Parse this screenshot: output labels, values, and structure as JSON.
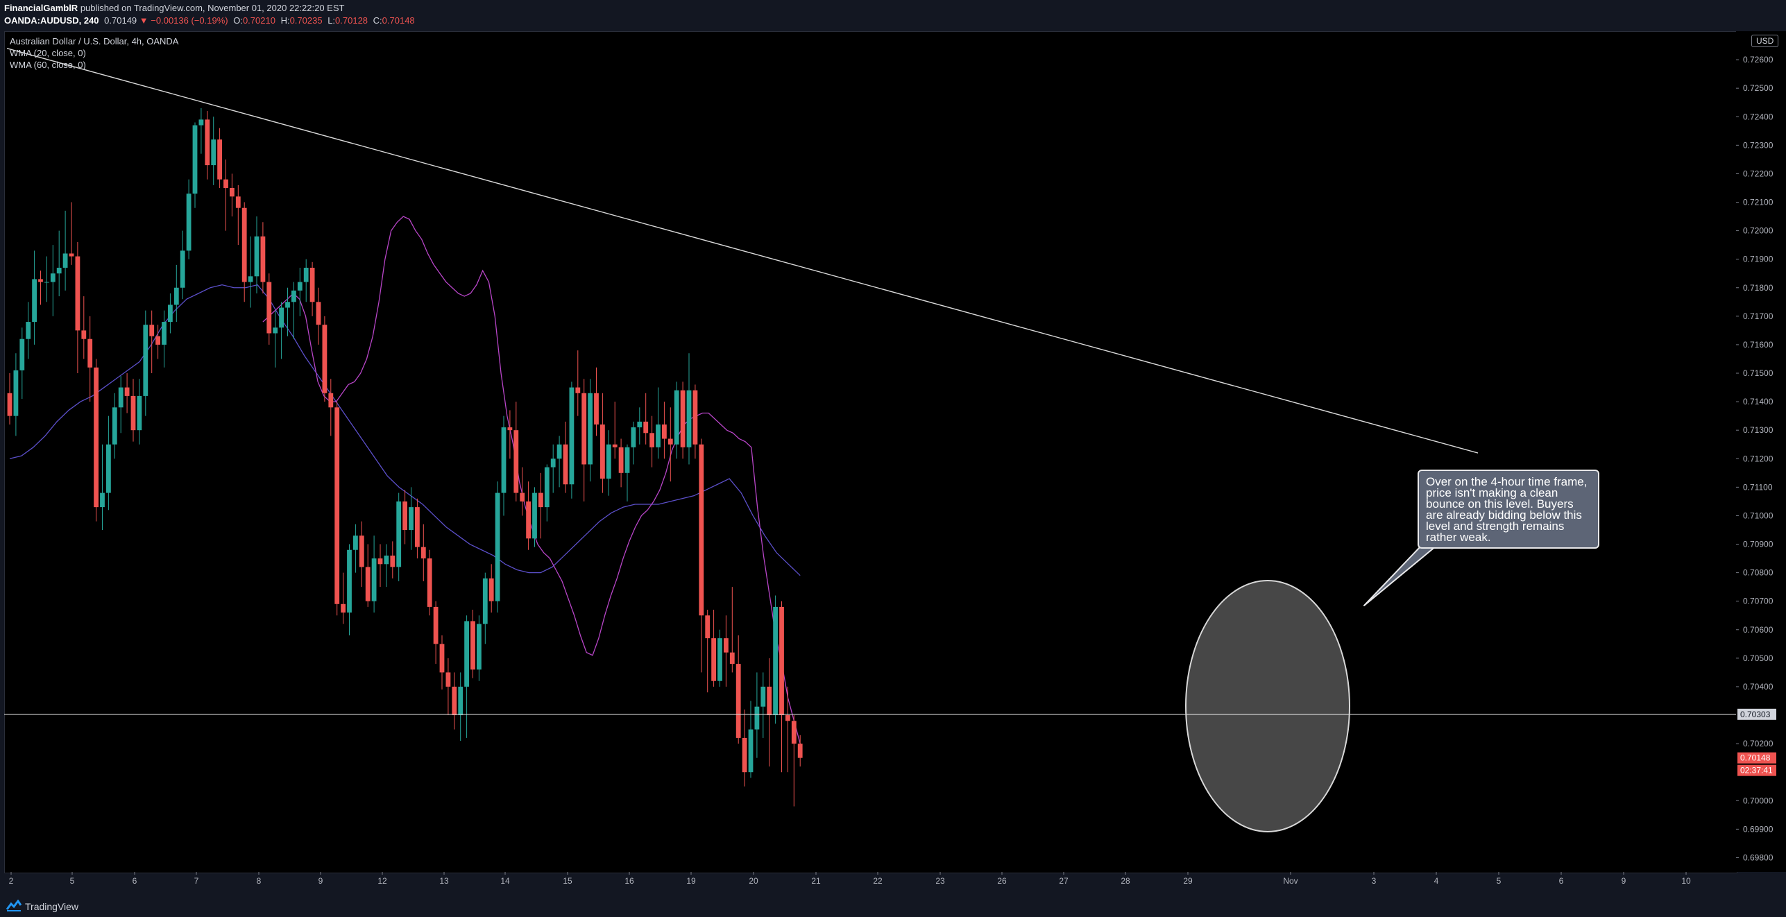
{
  "header": {
    "author": "FinancialGamblR",
    "published_text": "published on TradingView.com, November 01, 2020 22:22:20 EST",
    "symbol": "OANDA:AUDUSD, 240",
    "last": "0.70149",
    "change": "−0.00136 (−0.19%)",
    "open_label": "O:",
    "open": "0.70210",
    "high_label": "H:",
    "high": "0.70235",
    "low_label": "L:",
    "low": "0.70128",
    "close_label": "C:",
    "close": "0.70148"
  },
  "legend": {
    "title": "Australian Dollar / U.S. Dollar, 4h, OANDA",
    "indicators": [
      "WMA (20, close, 0)",
      "WMA (60, close, 0)"
    ]
  },
  "price_axis": {
    "currency": "USD",
    "levels": [
      "0.72600",
      "0.72500",
      "0.72400",
      "0.72300",
      "0.72200",
      "0.72100",
      "0.72000",
      "0.71900",
      "0.71800",
      "0.71700",
      "0.71600",
      "0.71500",
      "0.71400",
      "0.71300",
      "0.71200",
      "0.71100",
      "0.71000",
      "0.70900",
      "0.70800",
      "0.70700",
      "0.70600",
      "0.70500",
      "0.70400",
      "0.70200",
      "0.70000",
      "0.69900",
      "0.69800"
    ],
    "horizontal_line_label": "0.70303",
    "last_price_label": "0.70148",
    "countdown_label": "02:37:41"
  },
  "time_axis": {
    "labels": [
      "2",
      "5",
      "6",
      "7",
      "8",
      "9",
      "12",
      "13",
      "14",
      "15",
      "16",
      "19",
      "20",
      "21",
      "22",
      "23",
      "26",
      "27",
      "28",
      "29",
      "Nov",
      "3",
      "4",
      "5",
      "6",
      "9",
      "10"
    ]
  },
  "annotation": {
    "text": "Over on the 4-hour time frame, price isn't making a clean bounce on this level. Buyers are already bidding below this level and strength remains rather weak."
  },
  "footer": {
    "brand": "TradingView"
  },
  "chart_data": {
    "type": "candlestick",
    "symbol": "OANDA:AUDUSD",
    "timeframe": "240",
    "ylim": [
      0.6975,
      0.727
    ],
    "up_color": "#26a69a",
    "down_color": "#ef5350",
    "horizontal_line": 0.70303,
    "trendline": [
      [
        0.7264,
        0.0
      ],
      [
        0.7122,
        1.0
      ]
    ],
    "candles": [
      [
        0.7143,
        0.715,
        0.7132,
        0.7135
      ],
      [
        0.7135,
        0.7157,
        0.7128,
        0.7151
      ],
      [
        0.7151,
        0.7166,
        0.7141,
        0.7162
      ],
      [
        0.7162,
        0.7175,
        0.7155,
        0.7168
      ],
      [
        0.7168,
        0.7193,
        0.716,
        0.7183
      ],
      [
        0.7183,
        0.7186,
        0.7174,
        0.7182
      ],
      [
        0.7182,
        0.7191,
        0.7175,
        0.7182
      ],
      [
        0.7182,
        0.7195,
        0.717,
        0.7185
      ],
      [
        0.7185,
        0.72,
        0.7177,
        0.7187
      ],
      [
        0.7187,
        0.7207,
        0.7179,
        0.7192
      ],
      [
        0.7192,
        0.721,
        0.7188,
        0.7191
      ],
      [
        0.7191,
        0.7196,
        0.715,
        0.7165
      ],
      [
        0.7165,
        0.7177,
        0.7155,
        0.7162
      ],
      [
        0.7162,
        0.717,
        0.714,
        0.7152
      ],
      [
        0.7152,
        0.7155,
        0.7098,
        0.7103
      ],
      [
        0.7103,
        0.7125,
        0.7095,
        0.7108
      ],
      [
        0.7108,
        0.7135,
        0.7102,
        0.7125
      ],
      [
        0.7125,
        0.7143,
        0.712,
        0.7138
      ],
      [
        0.7138,
        0.7149,
        0.7129,
        0.7145
      ],
      [
        0.7145,
        0.715,
        0.7136,
        0.7142
      ],
      [
        0.7142,
        0.7148,
        0.7126,
        0.713
      ],
      [
        0.713,
        0.7148,
        0.7125,
        0.7142
      ],
      [
        0.7142,
        0.7172,
        0.7135,
        0.7167
      ],
      [
        0.7167,
        0.7172,
        0.715,
        0.7163
      ],
      [
        0.7163,
        0.7167,
        0.7155,
        0.716
      ],
      [
        0.716,
        0.7172,
        0.7152,
        0.7168
      ],
      [
        0.7168,
        0.7178,
        0.7164,
        0.7174
      ],
      [
        0.7174,
        0.7188,
        0.7168,
        0.718
      ],
      [
        0.718,
        0.72,
        0.7176,
        0.7193
      ],
      [
        0.7193,
        0.7218,
        0.719,
        0.7213
      ],
      [
        0.7213,
        0.7238,
        0.7208,
        0.7237
      ],
      [
        0.7237,
        0.7243,
        0.7227,
        0.7239
      ],
      [
        0.7239,
        0.7242,
        0.7218,
        0.7223
      ],
      [
        0.7223,
        0.724,
        0.7216,
        0.7232
      ],
      [
        0.7232,
        0.7236,
        0.7215,
        0.7218
      ],
      [
        0.7218,
        0.7225,
        0.72,
        0.7215
      ],
      [
        0.7215,
        0.722,
        0.7205,
        0.7212
      ],
      [
        0.7212,
        0.7216,
        0.7195,
        0.7208
      ],
      [
        0.7208,
        0.721,
        0.7175,
        0.7182
      ],
      [
        0.7182,
        0.7198,
        0.7173,
        0.7184
      ],
      [
        0.7184,
        0.7205,
        0.7178,
        0.7198
      ],
      [
        0.7198,
        0.7203,
        0.7178,
        0.7182
      ],
      [
        0.7182,
        0.7185,
        0.716,
        0.7164
      ],
      [
        0.7164,
        0.7172,
        0.7152,
        0.7166
      ],
      [
        0.7166,
        0.7175,
        0.7155,
        0.7173
      ],
      [
        0.7173,
        0.718,
        0.7163,
        0.7175
      ],
      [
        0.7175,
        0.7182,
        0.7162,
        0.7179
      ],
      [
        0.7179,
        0.7187,
        0.717,
        0.7182
      ],
      [
        0.7182,
        0.719,
        0.7175,
        0.7187
      ],
      [
        0.7187,
        0.7189,
        0.717,
        0.7175
      ],
      [
        0.7175,
        0.718,
        0.716,
        0.7167
      ],
      [
        0.7167,
        0.717,
        0.714,
        0.7143
      ],
      [
        0.7143,
        0.7148,
        0.7128,
        0.7138
      ],
      [
        0.7138,
        0.714,
        0.7065,
        0.7069
      ],
      [
        0.7069,
        0.708,
        0.7062,
        0.7066
      ],
      [
        0.7066,
        0.709,
        0.7058,
        0.7088
      ],
      [
        0.7088,
        0.7097,
        0.708,
        0.7093
      ],
      [
        0.7093,
        0.7098,
        0.7075,
        0.7082
      ],
      [
        0.7082,
        0.709,
        0.7068,
        0.707
      ],
      [
        0.707,
        0.7093,
        0.7066,
        0.7085
      ],
      [
        0.7085,
        0.709,
        0.7075,
        0.7083
      ],
      [
        0.7083,
        0.709,
        0.7075,
        0.7086
      ],
      [
        0.7086,
        0.7091,
        0.7078,
        0.7082
      ],
      [
        0.7082,
        0.7108,
        0.7077,
        0.7105
      ],
      [
        0.7105,
        0.7109,
        0.709,
        0.7095
      ],
      [
        0.7095,
        0.711,
        0.7088,
        0.7103
      ],
      [
        0.7103,
        0.7106,
        0.7085,
        0.7089
      ],
      [
        0.7089,
        0.7097,
        0.7077,
        0.7085
      ],
      [
        0.7085,
        0.7088,
        0.7065,
        0.7068
      ],
      [
        0.7068,
        0.707,
        0.7048,
        0.7055
      ],
      [
        0.7055,
        0.7058,
        0.7039,
        0.7045
      ],
      [
        0.7045,
        0.705,
        0.703,
        0.704
      ],
      [
        0.704,
        0.7045,
        0.7025,
        0.703
      ],
      [
        0.703,
        0.7045,
        0.7021,
        0.704
      ],
      [
        0.704,
        0.7065,
        0.7022,
        0.7063
      ],
      [
        0.7063,
        0.7067,
        0.7043,
        0.7046
      ],
      [
        0.7046,
        0.7065,
        0.7042,
        0.7062
      ],
      [
        0.7062,
        0.708,
        0.7055,
        0.7078
      ],
      [
        0.7078,
        0.7083,
        0.7066,
        0.707
      ],
      [
        0.707,
        0.7112,
        0.7066,
        0.7108
      ],
      [
        0.7108,
        0.7135,
        0.71,
        0.7131
      ],
      [
        0.7131,
        0.7137,
        0.712,
        0.713
      ],
      [
        0.713,
        0.714,
        0.7105,
        0.7108
      ],
      [
        0.7108,
        0.7117,
        0.71,
        0.7105
      ],
      [
        0.7105,
        0.7112,
        0.7088,
        0.7092
      ],
      [
        0.7092,
        0.711,
        0.7089,
        0.7108
      ],
      [
        0.7108,
        0.7115,
        0.7092,
        0.7103
      ],
      [
        0.7103,
        0.7118,
        0.7098,
        0.7117
      ],
      [
        0.7117,
        0.7125,
        0.7108,
        0.712
      ],
      [
        0.712,
        0.7128,
        0.711,
        0.7125
      ],
      [
        0.7125,
        0.7133,
        0.7108,
        0.7111
      ],
      [
        0.7111,
        0.7147,
        0.7106,
        0.7145
      ],
      [
        0.7145,
        0.7158,
        0.7135,
        0.7143
      ],
      [
        0.7143,
        0.7148,
        0.7105,
        0.7118
      ],
      [
        0.7118,
        0.7148,
        0.7112,
        0.7143
      ],
      [
        0.7143,
        0.7152,
        0.7128,
        0.7132
      ],
      [
        0.7132,
        0.7143,
        0.7108,
        0.7113
      ],
      [
        0.7113,
        0.713,
        0.7107,
        0.7125
      ],
      [
        0.7125,
        0.714,
        0.712,
        0.7124
      ],
      [
        0.7124,
        0.7127,
        0.711,
        0.7115
      ],
      [
        0.7115,
        0.7125,
        0.7105,
        0.7124
      ],
      [
        0.7124,
        0.7133,
        0.7118,
        0.7131
      ],
      [
        0.7131,
        0.7138,
        0.7125,
        0.7133
      ],
      [
        0.7133,
        0.7143,
        0.7125,
        0.7129
      ],
      [
        0.7129,
        0.7135,
        0.7117,
        0.7124
      ],
      [
        0.7124,
        0.7145,
        0.712,
        0.7132
      ],
      [
        0.7132,
        0.714,
        0.712,
        0.7127
      ],
      [
        0.7127,
        0.7138,
        0.7112,
        0.7125
      ],
      [
        0.7125,
        0.7147,
        0.712,
        0.7144
      ],
      [
        0.7144,
        0.7147,
        0.712,
        0.7124
      ],
      [
        0.7124,
        0.7157,
        0.7118,
        0.7144
      ],
      [
        0.7144,
        0.7146,
        0.712,
        0.7125
      ],
      [
        0.7125,
        0.7127,
        0.7045,
        0.7065
      ],
      [
        0.7065,
        0.7067,
        0.7038,
        0.7057
      ],
      [
        0.7057,
        0.7067,
        0.704,
        0.7042
      ],
      [
        0.7042,
        0.706,
        0.704,
        0.7057
      ],
      [
        0.7057,
        0.7065,
        0.704,
        0.7052
      ],
      [
        0.7052,
        0.7075,
        0.7045,
        0.7048
      ],
      [
        0.7048,
        0.7058,
        0.702,
        0.7022
      ],
      [
        0.7022,
        0.7032,
        0.7005,
        0.701
      ],
      [
        0.701,
        0.7035,
        0.7008,
        0.7025
      ],
      [
        0.7025,
        0.7045,
        0.7015,
        0.7033
      ],
      [
        0.7033,
        0.7045,
        0.7022,
        0.704
      ],
      [
        0.704,
        0.705,
        0.7012,
        0.703
      ],
      [
        0.703,
        0.7072,
        0.7027,
        0.7068
      ],
      [
        0.7068,
        0.707,
        0.701,
        0.703
      ],
      [
        0.703,
        0.704,
        0.701,
        0.7028
      ],
      [
        0.7028,
        0.703,
        0.6998,
        0.702
      ],
      [
        0.702,
        0.7023,
        0.7012,
        0.7015
      ]
    ],
    "wma20": [
      0.7168,
      0.717,
      0.7172,
      0.7174,
      0.7176,
      0.7178,
      0.7176,
      0.717,
      0.7158,
      0.7147,
      0.7142,
      0.714,
      0.714,
      0.7143,
      0.7146,
      0.7147,
      0.715,
      0.7155,
      0.7163,
      0.7175,
      0.719,
      0.72,
      0.7203,
      0.7205,
      0.7204,
      0.72,
      0.7197,
      0.7192,
      0.7188,
      0.7185,
      0.7182,
      0.718,
      0.7178,
      0.7177,
      0.7178,
      0.7181,
      0.7186,
      0.7182,
      0.717,
      0.715,
      0.7135,
      0.7125,
      0.7112,
      0.7103,
      0.7096,
      0.709,
      0.7087,
      0.7085,
      0.7081,
      0.7077,
      0.7071,
      0.7065,
      0.7058,
      0.7052,
      0.7051,
      0.7057,
      0.7065,
      0.7072,
      0.7078,
      0.7085,
      0.7091,
      0.7096,
      0.71,
      0.7102,
      0.7105,
      0.7109,
      0.7115,
      0.7123,
      0.7128,
      0.7132,
      0.7134,
      0.7135,
      0.7136,
      0.7136,
      0.7134,
      0.7132,
      0.713,
      0.7129,
      0.7127,
      0.7126,
      0.7124,
      0.7103,
      0.7086,
      0.7072,
      0.7058,
      0.7048,
      0.7036,
      0.7028,
      0.702
    ],
    "wma20_start": 41,
    "wma60": [
      0.712,
      0.7121,
      0.7124,
      0.7128,
      0.7133,
      0.7137,
      0.714,
      0.7142,
      0.7145,
      0.7148,
      0.7151,
      0.7154,
      0.716,
      0.7167,
      0.7172,
      0.7176,
      0.7178,
      0.718,
      0.7181,
      0.718,
      0.718,
      0.7181,
      0.7176,
      0.7169,
      0.7163,
      0.7156,
      0.715,
      0.7144,
      0.7138,
      0.7132,
      0.7126,
      0.712,
      0.7114,
      0.711,
      0.7107,
      0.7104,
      0.71,
      0.7096,
      0.7093,
      0.709,
      0.7088,
      0.7086,
      0.7083,
      0.7081,
      0.708,
      0.708,
      0.7082,
      0.7086,
      0.709,
      0.7094,
      0.7098,
      0.7101,
      0.7103,
      0.7104,
      0.7104,
      0.7104,
      0.7105,
      0.7106,
      0.7107,
      0.7109,
      0.7111,
      0.7113,
      0.7108,
      0.71,
      0.7093,
      0.7087,
      0.7083,
      0.7079
    ],
    "wma60_start": 0
  }
}
